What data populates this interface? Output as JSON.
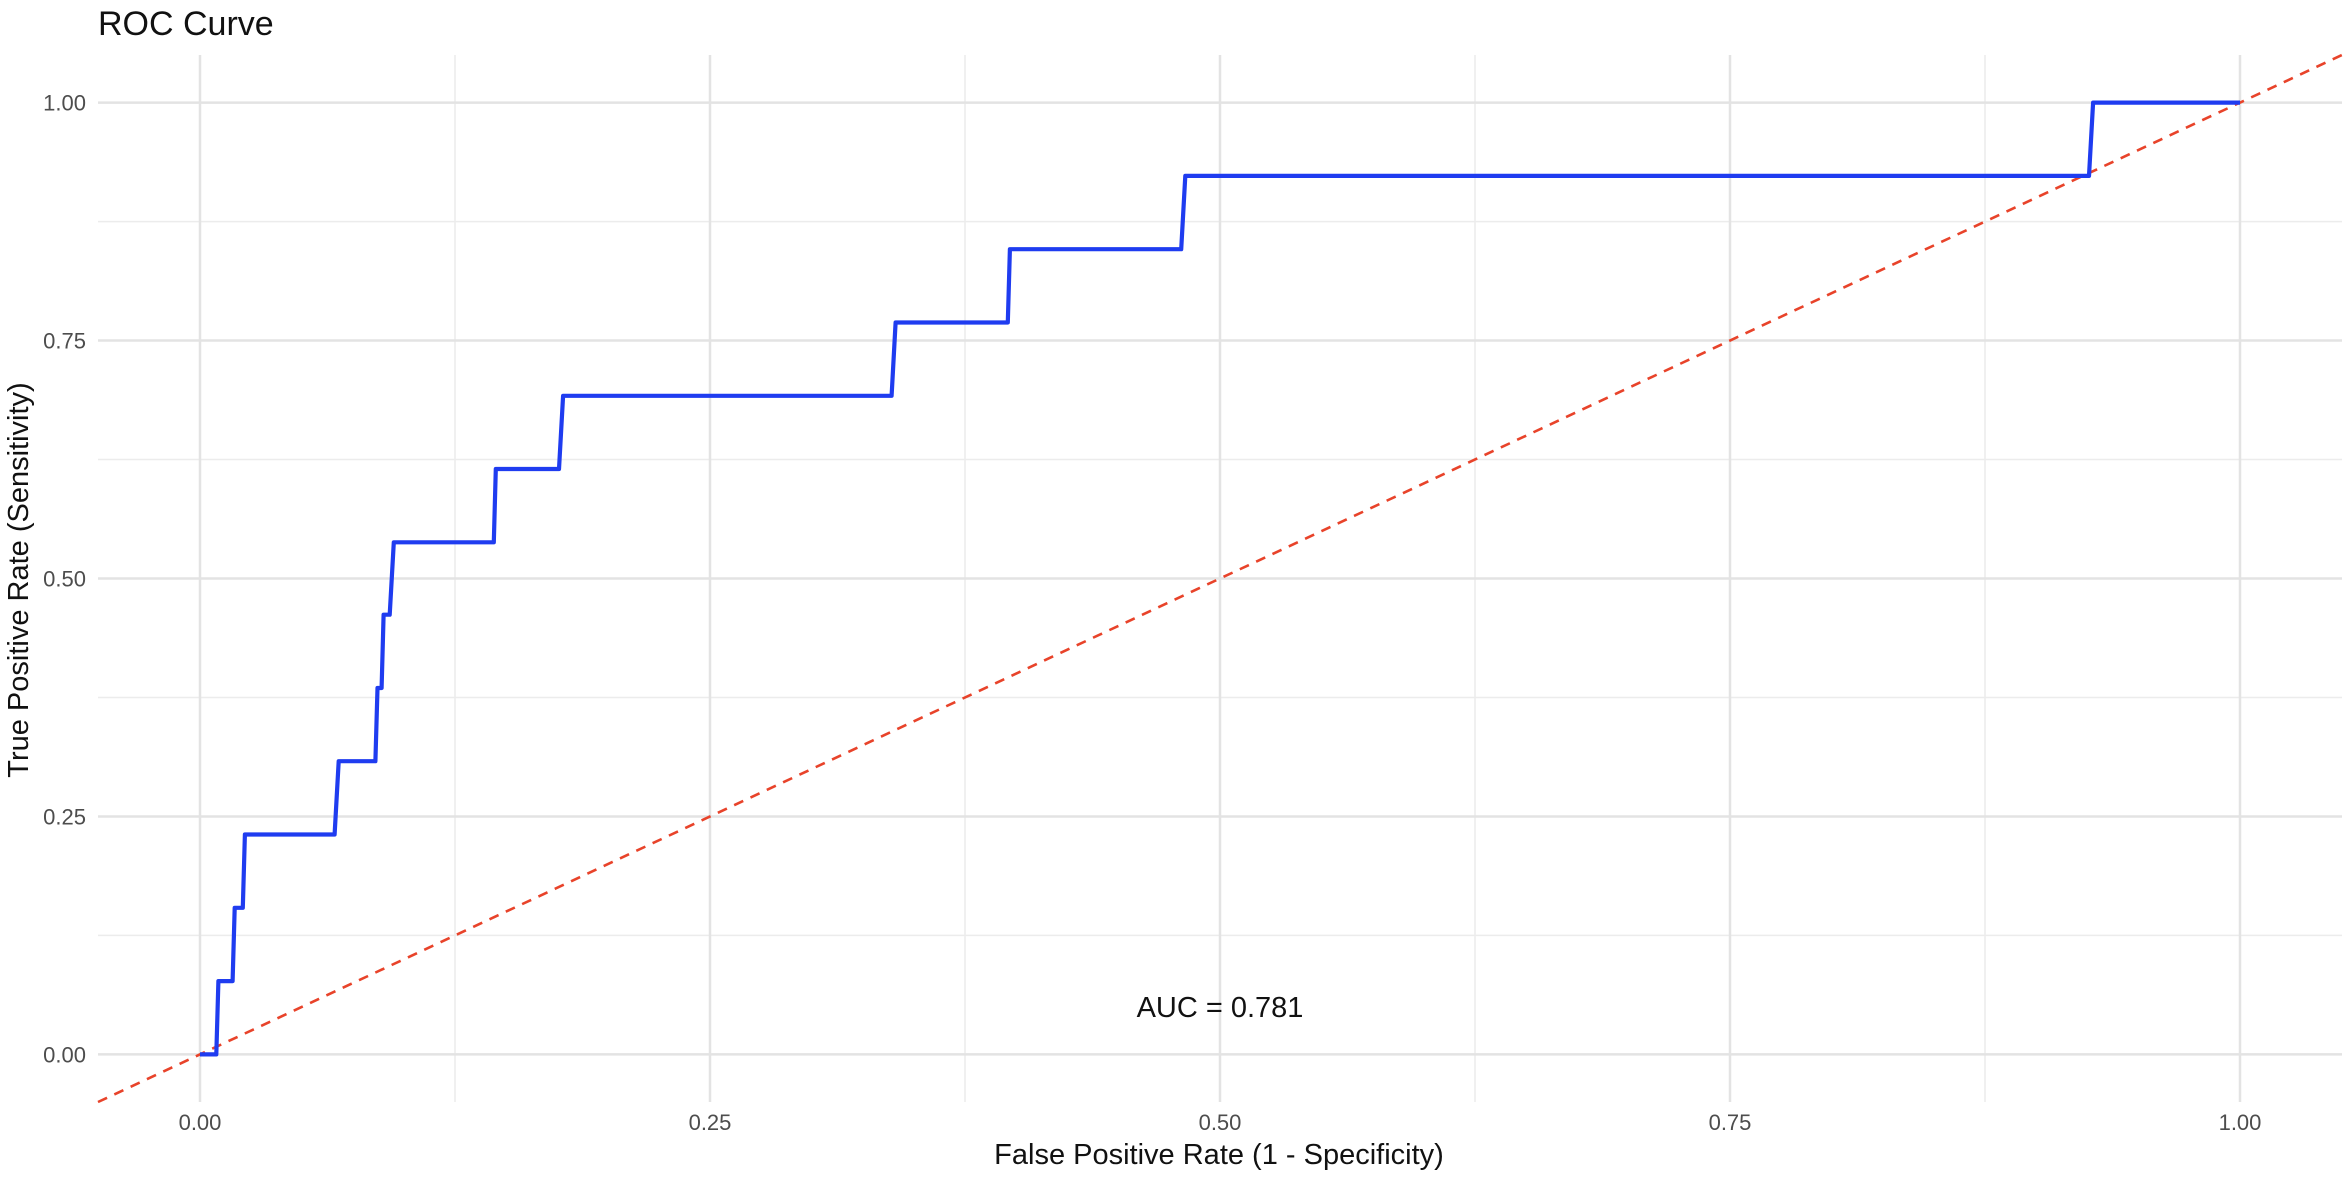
{
  "chart_data": {
    "type": "line",
    "title": "ROC Curve",
    "xlabel": "False Positive Rate (1 - Specificity)",
    "ylabel": "True Positive Rate (Sensitivity)",
    "xlim": [
      -0.05,
      1.05
    ],
    "ylim": [
      -0.05,
      1.05
    ],
    "x_ticks": [
      0,
      0.25,
      0.5,
      0.75,
      1
    ],
    "x_tick_labels": [
      "0.00",
      "0.25",
      "0.50",
      "0.75",
      "1.00"
    ],
    "y_ticks": [
      0,
      0.25,
      0.5,
      0.75,
      1
    ],
    "y_tick_labels": [
      "0.00",
      "0.25",
      "0.50",
      "0.75",
      "1.00"
    ],
    "grid": true,
    "series": [
      {
        "color": "#1f3cf0",
        "line_style": "solid",
        "points": [
          [
            0.0,
            0.0
          ],
          [
            0.008,
            0.0
          ],
          [
            0.009,
            0.077
          ],
          [
            0.016,
            0.077
          ],
          [
            0.017,
            0.154
          ],
          [
            0.021,
            0.154
          ],
          [
            0.022,
            0.231
          ],
          [
            0.066,
            0.231
          ],
          [
            0.068,
            0.308
          ],
          [
            0.086,
            0.308
          ],
          [
            0.087,
            0.385
          ],
          [
            0.089,
            0.385
          ],
          [
            0.09,
            0.462
          ],
          [
            0.093,
            0.462
          ],
          [
            0.095,
            0.538
          ],
          [
            0.144,
            0.538
          ],
          [
            0.145,
            0.615
          ],
          [
            0.176,
            0.615
          ],
          [
            0.178,
            0.692
          ],
          [
            0.339,
            0.692
          ],
          [
            0.341,
            0.769
          ],
          [
            0.396,
            0.769
          ],
          [
            0.397,
            0.846
          ],
          [
            0.481,
            0.846
          ],
          [
            0.483,
            0.923
          ],
          [
            0.926,
            0.923
          ],
          [
            0.928,
            1.0
          ],
          [
            1.0,
            1.0
          ]
        ]
      },
      {
        "color": "#e8432a",
        "line_style": "dashed",
        "points": [
          [
            -0.05,
            -0.05
          ],
          [
            1.05,
            1.05
          ]
        ]
      }
    ],
    "annotations": [
      {
        "text": "AUC = 0.781",
        "x": 0.5,
        "y": 0.05
      }
    ]
  }
}
